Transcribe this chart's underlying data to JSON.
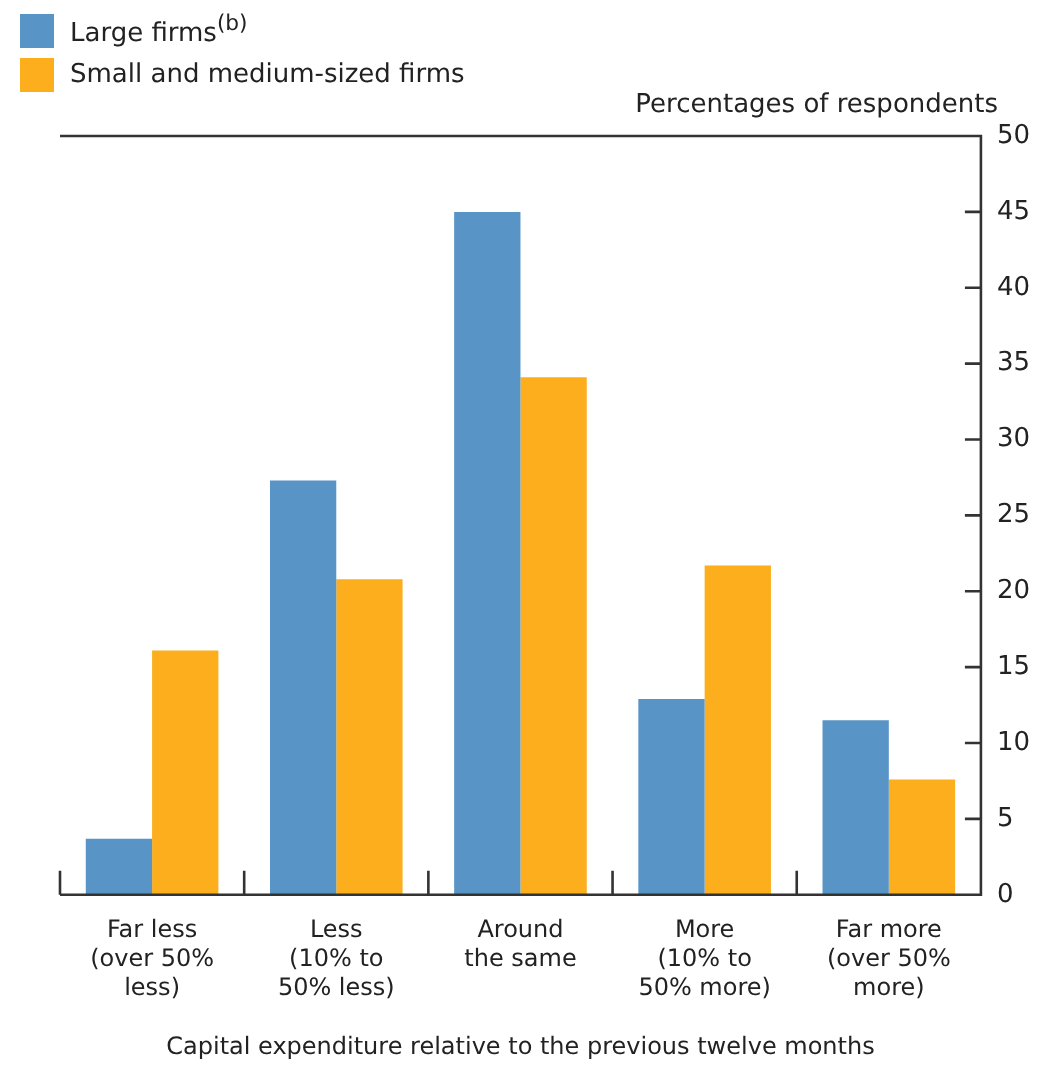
{
  "chart_data": {
    "type": "bar",
    "xlabel": "Capital expenditure relative to the previous twelve months",
    "ylabel": "Percentages of respondents",
    "categories": [
      "Far less\n(over 50%\nless)",
      "Less\n(10% to\n50% less)",
      "Around\nthe same",
      "More\n(10% to\n50% more)",
      "Far more\n(over 50%\nmore)"
    ],
    "series": [
      {
        "name": "Large firms$^{(b)}$",
        "color": "#5894c6",
        "values": [
          3.7,
          27.3,
          45.0,
          12.9,
          11.5
        ]
      },
      {
        "name": "Small and medium-sized firms",
        "color": "#fcae1c",
        "values": [
          16.1,
          20.8,
          34.1,
          21.7,
          7.6
        ]
      }
    ],
    "ylim": [
      0,
      50
    ],
    "yticks": [
      0,
      5,
      10,
      15,
      20,
      25,
      30,
      35,
      40,
      45,
      50
    ],
    "grid": false,
    "legend": "top left"
  }
}
